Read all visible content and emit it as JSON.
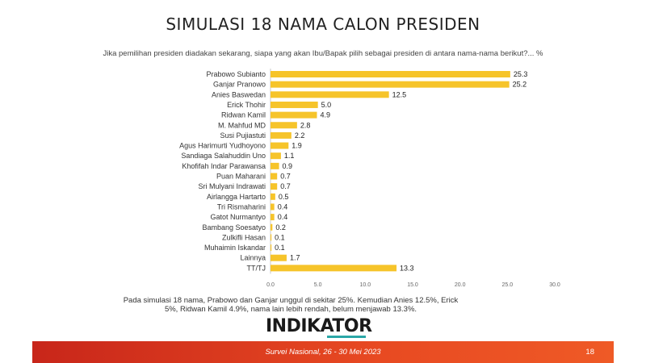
{
  "title": "SIMULASI 18 NAMA CALON PRESIDEN",
  "subtitle": "Jika pemilihan presiden diadakan sekarang, siapa yang akan Ibu/Bapak pilih sebagai presiden di antara nama-nama berikut?... %",
  "note": "Pada simulasi 18 nama, Prabowo dan Ganjar unggul di sekitar 25%. Kemudian Anies 12.5%, Erick 5%, Ridwan Kamil 4.9%, nama lain lebih rendah, belum menjawab 13.3%.",
  "logo": "INDIKATOR",
  "footer": {
    "text": "Survei Nasional, 26 - 30 Mei 2023",
    "page": "18"
  },
  "colors": {
    "bar": "#f6c42a",
    "footer": "#e53a20",
    "logo_accent": "#2aa7a7"
  },
  "chart_data": {
    "type": "bar",
    "orientation": "horizontal",
    "categories": [
      "Prabowo Subianto",
      "Ganjar Pranowo",
      "Anies Baswedan",
      "Erick Thohir",
      "Ridwan Kamil",
      "M. Mahfud MD",
      "Susi Pujiastuti",
      "Agus Harimurti Yudhoyono",
      "Sandiaga Salahuddin Uno",
      "Khofifah Indar Parawansa",
      "Puan Maharani",
      "Sri Mulyani Indrawati",
      "Airlangga Hartarto",
      "Tri Rismaharini",
      "Gatot Nurmantyo",
      "Bambang Soesatyo",
      "Zulkifli Hasan",
      "Muhaimin Iskandar",
      "Lainnya",
      "TT/TJ"
    ],
    "values": [
      25.3,
      25.2,
      12.5,
      5.0,
      4.9,
      2.8,
      2.2,
      1.9,
      1.1,
      0.9,
      0.7,
      0.7,
      0.5,
      0.4,
      0.4,
      0.2,
      0.1,
      0.1,
      1.7,
      13.3
    ],
    "value_labels": [
      "25.3",
      "25.2",
      "12.5",
      "5.0",
      "4.9",
      "2.8",
      "2.2",
      "1.9",
      "1.1",
      "0.9",
      "0.7",
      "0.7",
      "0.5",
      "0.4",
      "0.4",
      "0.2",
      "0.1",
      "0.1",
      "1.7",
      "13.3"
    ],
    "xlim": [
      0,
      30
    ],
    "xticks": [
      "0.0",
      "5.0",
      "10.0",
      "15.0",
      "20.0",
      "25.0",
      "30.0"
    ],
    "grid": false,
    "legend": "none"
  }
}
